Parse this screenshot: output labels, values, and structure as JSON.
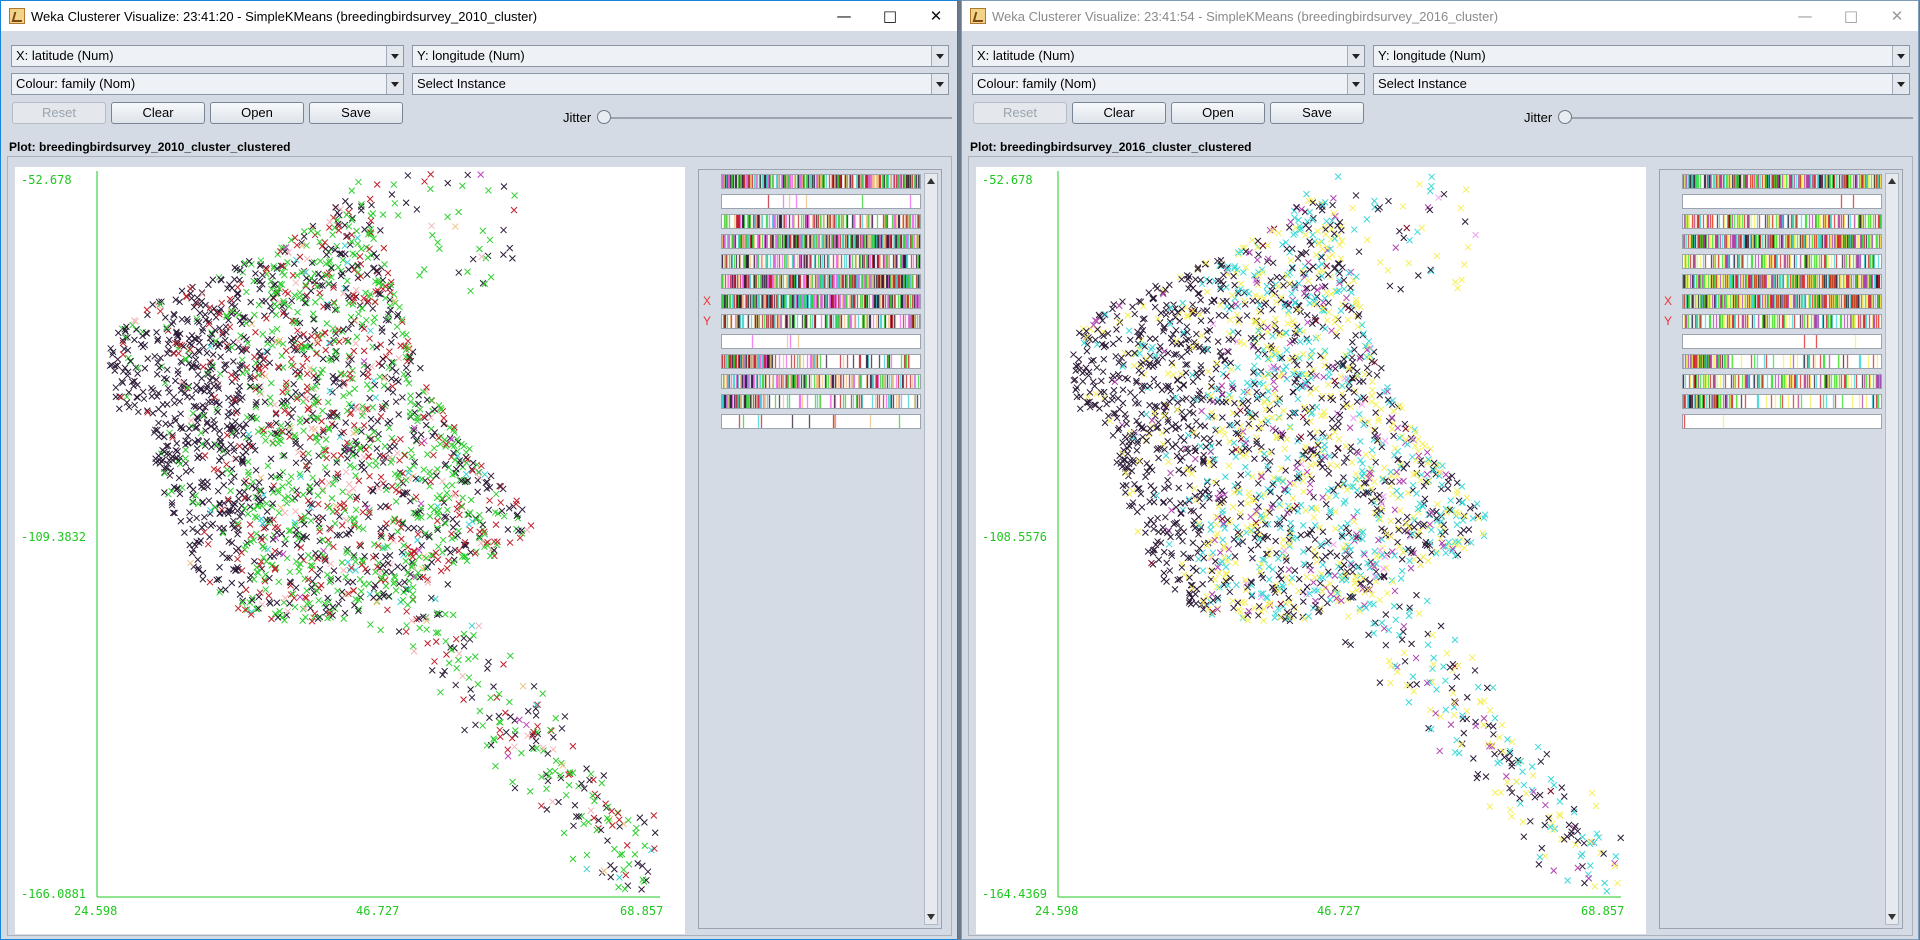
{
  "windows": [
    {
      "title": "Weka Clusterer Visualize: 23:41:20 - SimpleKMeans (breedingbirdsurvey_2010_cluster)",
      "x_select": "X: latitude (Num)",
      "y_select": "Y: longitude (Num)",
      "colour_select": "Colour: family (Nom)",
      "instance_select": "Select Instance",
      "buttons": {
        "reset": "Reset",
        "clear": "Clear",
        "open": "Open",
        "save": "Save"
      },
      "jitter_label": "Jitter",
      "jitter_value": 0,
      "plot_label": "Plot: breedingbirdsurvey_2010_cluster_clustered",
      "axis": {
        "y_top": "-52.678",
        "y_mid": "-109.3832",
        "y_bottom": "-166.0881",
        "x_left": "24.598",
        "x_mid": "46.727",
        "x_right": "68.857"
      },
      "palette": [
        "#2b1a36",
        "#c0202a",
        "#2fcf2f",
        "#f4b5b8",
        "#3ad0d0",
        "#f0c080",
        "#c040c0"
      ],
      "attr_x_marker": "X",
      "attr_y_marker": "Y"
    },
    {
      "title": "Weka Clusterer Visualize: 23:41:54 - SimpleKMeans (breedingbirdsurvey_2016_cluster)",
      "x_select": "X: latitude (Num)",
      "y_select": "Y: longitude (Num)",
      "colour_select": "Colour: family (Nom)",
      "instance_select": "Select Instance",
      "buttons": {
        "reset": "Reset",
        "clear": "Clear",
        "open": "Open",
        "save": "Save"
      },
      "jitter_label": "Jitter",
      "jitter_value": 0,
      "plot_label": "Plot: breedingbirdsurvey_2016_cluster_clustered",
      "axis": {
        "y_top": "-52.678",
        "y_mid": "-108.5576",
        "y_bottom": "-164.4369",
        "x_left": "24.598",
        "x_mid": "46.727",
        "x_right": "68.857"
      },
      "palette": [
        "#2b1a36",
        "#3ad8d8",
        "#f5f05a",
        "#b040b0",
        "#800020",
        "#f0a0f0"
      ],
      "attr_x_marker": "X",
      "attr_y_marker": "Y"
    }
  ],
  "window_controls": {
    "minimize_icon": "minimize-icon",
    "maximize_icon": "maximize-icon",
    "close_icon": "close-icon"
  }
}
